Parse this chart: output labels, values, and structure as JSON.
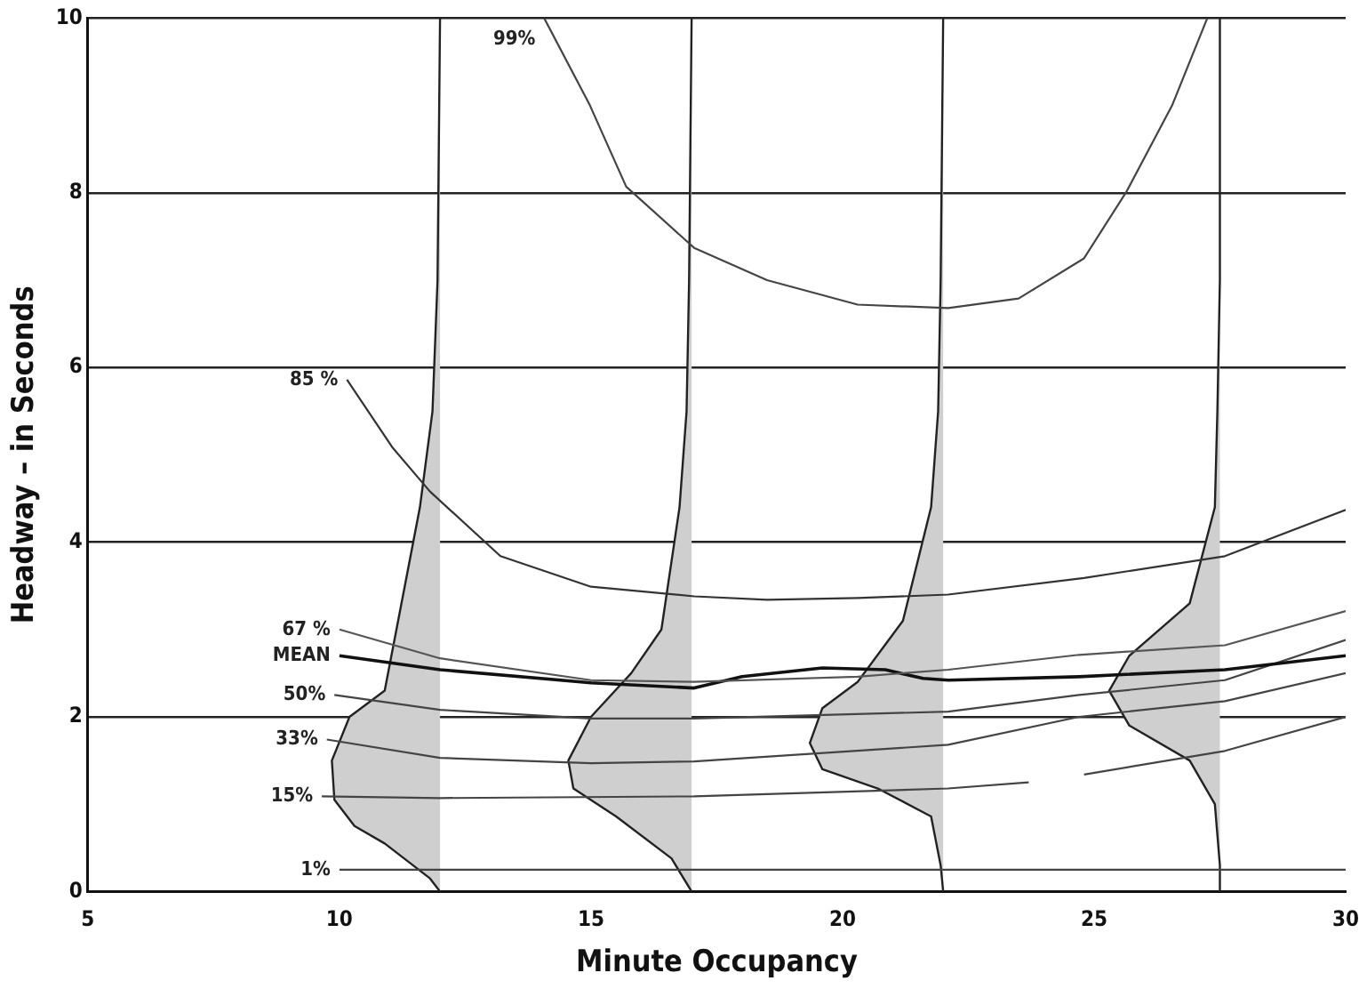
{
  "chart_data": {
    "type": "line",
    "xlabel": "Minute Occupancy",
    "ylabel": "Headway – in Seconds",
    "xlim": [
      5,
      30
    ],
    "xticks": [
      5,
      10,
      15,
      20,
      25,
      30
    ],
    "ylim": [
      0,
      10
    ],
    "yticks": [
      0,
      2,
      4,
      6,
      8,
      10
    ],
    "grid": "y",
    "legend": false,
    "marker": "none",
    "series": [
      {
        "name": "99%",
        "color": "#444444",
        "x": [
          14.07,
          14.98,
          15.7,
          17.05,
          18.5,
          20.3,
          22.1,
          23.5,
          24.8,
          25.65,
          26.55,
          27.25
        ],
        "values": [
          10,
          9.0,
          8.07,
          7.37,
          7.0,
          6.72,
          6.68,
          6.79,
          7.25,
          8.02,
          9.0,
          10
        ]
      },
      {
        "name": "85 %",
        "color": "#333333",
        "x": [
          10.15,
          11.06,
          11.8,
          13.2,
          15.0,
          17.05,
          18.5,
          20.3,
          22.1,
          24.8,
          27.6,
          30
        ],
        "values": [
          5.86,
          5.08,
          4.58,
          3.84,
          3.49,
          3.38,
          3.34,
          3.36,
          3.4,
          3.59,
          3.84,
          4.37
        ]
      },
      {
        "name": "67 %",
        "color": "#555555",
        "x": [
          10.0,
          12.0,
          15.0,
          17.05,
          20.3,
          22.1,
          24.7,
          27.6,
          30
        ],
        "values": [
          3.0,
          2.67,
          2.42,
          2.4,
          2.46,
          2.54,
          2.71,
          2.82,
          3.21
        ]
      },
      {
        "name": "MEAN",
        "color": "#111111",
        "x": [
          10,
          12,
          15,
          17.05,
          18.0,
          19.6,
          20.85,
          21.6,
          22.1,
          24.7,
          27.6,
          30
        ],
        "values": [
          2.7,
          2.54,
          2.39,
          2.33,
          2.46,
          2.56,
          2.54,
          2.44,
          2.42,
          2.46,
          2.54,
          2.7
        ]
      },
      {
        "name": "50%",
        "color": "#444444",
        "x": [
          9.9,
          12,
          15,
          17.05,
          22.1,
          24.7,
          27.6,
          30
        ],
        "values": [
          2.25,
          2.08,
          1.98,
          1.98,
          2.06,
          2.25,
          2.42,
          2.88
        ]
      },
      {
        "name": "33%",
        "color": "#444444",
        "x": [
          9.75,
          12,
          15,
          17.05,
          22.1,
          24.7,
          27.6,
          30
        ],
        "values": [
          1.74,
          1.53,
          1.47,
          1.49,
          1.68,
          2.0,
          2.18,
          2.5
        ]
      },
      {
        "name": "15%",
        "color": "#444444",
        "x": [
          9.65,
          12,
          17.05,
          22.1,
          23.7,
          24.2,
          24.8,
          27.6,
          30
        ],
        "values": [
          1.09,
          1.07,
          1.09,
          1.18,
          1.25,
          null,
          1.34,
          1.61,
          2.0
        ]
      },
      {
        "name": "1%",
        "color": "#444444",
        "x": [
          10,
          30
        ],
        "values": [
          0.25,
          0.25
        ]
      },
      {
        "type": "area",
        "color": "#cfcfcf",
        "x": [
          12,
          11.95,
          11.85,
          11.6,
          11.25,
          10.9,
          10.2,
          9.85,
          9.9,
          10.3,
          10.9,
          11.8,
          12
        ],
        "values": [
          10,
          7,
          5.5,
          4.4,
          3.35,
          2.3,
          2.0,
          1.5,
          1.05,
          0.75,
          0.55,
          0.15,
          0
        ]
      },
      {
        "type": "area",
        "color": "#cfcfcf",
        "x": [
          17,
          16.95,
          16.9,
          16.76,
          16.4,
          15.8,
          15.0,
          14.55,
          14.65,
          15.5,
          16.6,
          17
        ],
        "values": [
          10,
          7,
          5.5,
          4.4,
          3.0,
          2.5,
          2.0,
          1.5,
          1.18,
          0.86,
          0.38,
          0
        ]
      },
      {
        "type": "area",
        "color": "#cfcfcf",
        "x": [
          22,
          21.95,
          21.9,
          21.76,
          21.2,
          20.3,
          19.6,
          19.35,
          19.6,
          20.7,
          21.76,
          21.95,
          22
        ],
        "values": [
          10,
          7,
          5.5,
          4.4,
          3.1,
          2.4,
          2.1,
          1.7,
          1.4,
          1.18,
          0.86,
          0.3,
          0
        ]
      },
      {
        "type": "area",
        "color": "#cfcfcf",
        "x": [
          27.5,
          27.5,
          27.45,
          27.4,
          26.9,
          25.7,
          25.3,
          25.7,
          26.9,
          27.4,
          27.5,
          27.5
        ],
        "values": [
          10,
          7,
          5.5,
          4.4,
          3.3,
          2.7,
          2.3,
          1.9,
          1.5,
          1.0,
          0.3,
          0
        ]
      }
    ]
  }
}
